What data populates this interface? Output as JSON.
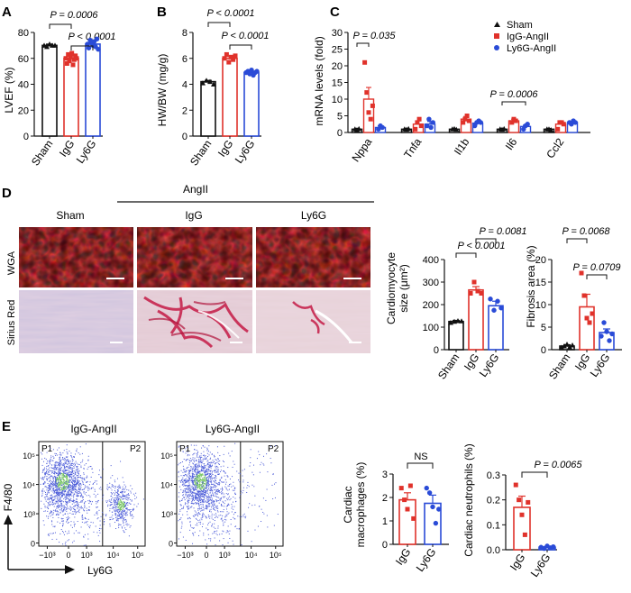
{
  "colors": {
    "sham": "#111111",
    "igg": "#e0322b",
    "ly6g": "#2a4bd7",
    "wga_bg": "#3a0506",
    "wga_fg": "#e0161c",
    "sirius_bg": "#e7d2d8",
    "sirius_sham_tint": "#c9c2dc",
    "sirius_red": "#c41a45",
    "facs_dot": "#4a5ad8",
    "facs_dense": "#6fc15a"
  },
  "panels": {
    "A": {
      "letter": "A",
      "ylabel": "LVEF (%)",
      "ticks": [
        "0",
        "20",
        "40",
        "60",
        "80"
      ],
      "p1": "P = 0.0006",
      "p2": "P < 0.0001"
    },
    "B": {
      "letter": "B",
      "ylabel": "HW/BW (mg/g)",
      "ticks": [
        "0",
        "2",
        "4",
        "6",
        "8"
      ],
      "p1": "P < 0.0001",
      "p2": "P < 0.0001"
    },
    "C": {
      "letter": "C",
      "ylabel": "mRNA levels (fold)",
      "ticks": [
        "0",
        "5",
        "10",
        "15",
        "20",
        "25",
        "30"
      ],
      "p_nppa": "P = 0.035",
      "p_il6": "P = 0.0006",
      "legend": [
        "Sham",
        "IgG-AngII",
        "Ly6G-AngII"
      ]
    },
    "D": {
      "letter": "D",
      "angii": "AngII",
      "col_sham": "Sham",
      "col_igg": "IgG",
      "col_ly6g": "Ly6G",
      "row_wga": "WGA",
      "row_sirius": "Sirius Red"
    },
    "D_cm": {
      "ylabel1": "Cardiomyocyte",
      "ylabel2": "size (μm²)",
      "ticks": [
        "0",
        "100",
        "200",
        "300",
        "400"
      ],
      "p1": "P < 0.0001",
      "p2": "P = 0.0081"
    },
    "D_fib": {
      "ylabel": "Fibrosis area (%)",
      "ticks": [
        "0",
        "5",
        "10",
        "15",
        "20"
      ],
      "p1": "P = 0.0068",
      "p2": "P = 0.0709"
    },
    "E": {
      "letter": "E",
      "title_igg": "IgG-AngII",
      "title_ly6g": "Ly6G-AngII",
      "gate1": "P1",
      "gate2": "P2",
      "yaxis": "F4/80",
      "xaxis": "Ly6G",
      "yticks": [
        "0",
        "10³",
        "10⁴",
        "10⁵"
      ],
      "xticks": [
        "−10³",
        "0",
        "10³",
        "10⁴",
        "10⁵"
      ]
    },
    "E_mac": {
      "ylabel1": "Cardiac",
      "ylabel2": "macrophages (%)",
      "ticks": [
        "0",
        "1",
        "2",
        "3"
      ],
      "sig": "NS"
    },
    "E_neu": {
      "ylabel": "Cardiac neutrophils (%)",
      "ticks": [
        "0.0",
        "0.1",
        "0.2",
        "0.3"
      ],
      "sig": "P = 0.0065"
    }
  },
  "chart_data": [
    {
      "panel": "A",
      "type": "bar",
      "categories": [
        "Sham",
        "IgG",
        "Ly6G"
      ],
      "values": [
        70,
        60,
        71
      ],
      "errors": [
        1,
        2,
        2
      ],
      "ylabel": "LVEF (%)",
      "ylim": [
        0,
        80
      ],
      "points": [
        [
          70,
          69,
          71,
          70,
          70
        ],
        [
          60,
          56,
          63,
          58,
          61,
          64,
          55,
          59,
          62,
          60
        ],
        [
          71,
          68,
          74,
          72,
          70,
          73,
          69,
          75,
          67
        ]
      ]
    },
    {
      "panel": "B",
      "type": "bar",
      "categories": [
        "Sham",
        "IgG",
        "Ly6G"
      ],
      "values": [
        4.2,
        6.0,
        4.9
      ],
      "errors": [
        0.1,
        0.15,
        0.1
      ],
      "ylabel": "HW/BW (mg/g)",
      "ylim": [
        0,
        8
      ],
      "points": [
        [
          4.1,
          4.3,
          4.2,
          4.0
        ],
        [
          6.0,
          6.3,
          5.7,
          6.1,
          5.9,
          6.2
        ],
        [
          4.9,
          5.0,
          4.8,
          5.1,
          4.7,
          4.9,
          5.0
        ]
      ]
    },
    {
      "panel": "C",
      "type": "bar",
      "categories": [
        "Nppa",
        "Tnfa",
        "Il1b",
        "Il6",
        "Ccl2"
      ],
      "ylabel": "mRNA levels (fold)",
      "ylim": [
        0,
        30
      ],
      "series": [
        {
          "name": "Sham",
          "values": [
            1,
            1,
            1,
            1,
            1
          ],
          "errors": [
            0.2,
            0.2,
            0.2,
            0.2,
            0.2
          ]
        },
        {
          "name": "IgG-AngII",
          "values": [
            10,
            2.5,
            4,
            3.5,
            2.5
          ],
          "errors": [
            3.5,
            1,
            0.8,
            0.5,
            0.8
          ]
        },
        {
          "name": "Ly6G-AngII",
          "values": [
            1.5,
            2.5,
            2.8,
            1.8,
            3
          ],
          "errors": [
            0.5,
            0.8,
            0.6,
            0.4,
            0.4
          ]
        }
      ],
      "points": [
        [
          [
            1,
            0.8,
            1.1
          ],
          [
            21,
            12,
            6,
            4,
            8
          ],
          [
            1,
            2,
            1.5
          ]
        ],
        [
          [
            1,
            0.9,
            1.1
          ],
          [
            1,
            3,
            4,
            2
          ],
          [
            2,
            4,
            1.5,
            3
          ]
        ],
        [
          [
            1,
            1.1,
            0.9
          ],
          [
            3,
            4,
            5,
            3.5
          ],
          [
            2,
            3,
            3.5,
            3
          ]
        ],
        [
          [
            1,
            0.9,
            1.1
          ],
          [
            3,
            4,
            3.5
          ],
          [
            1,
            2,
            2.5
          ]
        ],
        [
          [
            1,
            1,
            0.8
          ],
          [
            1,
            3,
            3,
            2.5
          ],
          [
            3,
            2.5,
            3.5,
            3
          ]
        ]
      ]
    },
    {
      "panel": "D-cardiomyocyte",
      "type": "bar",
      "categories": [
        "Sham",
        "IgG",
        "Ly6G"
      ],
      "values": [
        125,
        265,
        195
      ],
      "errors": [
        5,
        15,
        20
      ],
      "ylabel": "Cardiomyocyte size (μm²)",
      "ylim": [
        0,
        400
      ],
      "points": [
        [
          120,
          125,
          128,
          127
        ],
        [
          250,
          300,
          260,
          250
        ],
        [
          225,
          175,
          215,
          185
        ]
      ]
    },
    {
      "panel": "D-fibrosis",
      "type": "bar",
      "categories": [
        "Sham",
        "IgG",
        "Ly6G"
      ],
      "values": [
        0.8,
        9.5,
        3.8
      ],
      "errors": [
        0.3,
        2.8,
        0.8
      ],
      "ylabel": "Fibrosis area (%)",
      "ylim": [
        0,
        20
      ],
      "points": [
        [
          0.5,
          0.8,
          1.2,
          0.6,
          1.0
        ],
        [
          17,
          12,
          7,
          6,
          8
        ],
        [
          3,
          6,
          4,
          2,
          3.5
        ]
      ]
    },
    {
      "panel": "E-macrophages",
      "type": "bar",
      "categories": [
        "IgG",
        "Ly6G"
      ],
      "values": [
        1.9,
        1.75
      ],
      "errors": [
        0.3,
        0.35
      ],
      "ylabel": "Cardiac macrophages (%)",
      "ylim": [
        0,
        3
      ],
      "points": [
        [
          2.4,
          1.9,
          1.5,
          2.5,
          1.1
        ],
        [
          2.4,
          2.2,
          1.6,
          0.9,
          1.5
        ]
      ]
    },
    {
      "panel": "E-neutrophils",
      "type": "bar",
      "categories": [
        "IgG",
        "Ly6G"
      ],
      "values": [
        0.17,
        0.01
      ],
      "errors": [
        0.045,
        0.003
      ],
      "ylabel": "Cardiac neutrophils (%)",
      "ylim": [
        0,
        0.3
      ],
      "points": [
        [
          0.26,
          0.2,
          0.14,
          0.06,
          0.19
        ],
        [
          0.01,
          0.005,
          0.015,
          0.008,
          0.012
        ]
      ]
    }
  ]
}
